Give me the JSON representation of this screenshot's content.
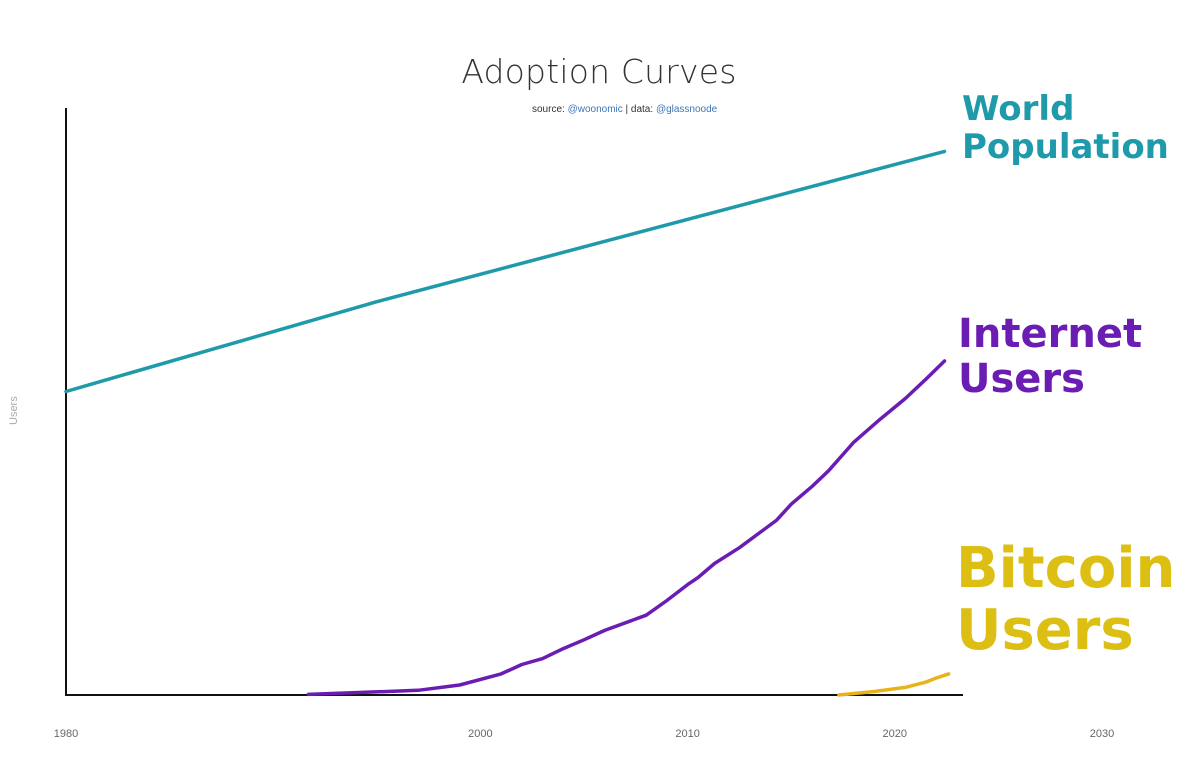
{
  "chart_data": {
    "type": "line",
    "title": "Adoption Curves",
    "subtitle": {
      "prefix": "source: ",
      "source_handle": "@woonomic",
      "separator": " | data: ",
      "data_handle": "@glassnoode"
    },
    "xlabel": "",
    "ylabel": "Users",
    "xlim": [
      1980,
      2030
    ],
    "x_ticks": [
      1980,
      2000,
      2010,
      2020,
      2030
    ],
    "ylim": [
      0,
      100
    ],
    "y_ticks_shown": false,
    "grid": false,
    "legend": "inline labels at line ends (right)",
    "series": [
      {
        "name": "World Population",
        "label_lines": [
          "World",
          "Population"
        ],
        "color": "#1e9aaa",
        "x": [
          1980,
          1995,
          2022.4
        ],
        "y": [
          51.7,
          67.0,
          92.6
        ]
      },
      {
        "name": "Internet Users",
        "label_lines": [
          "Internet",
          "Users"
        ],
        "color": "#6a1cb3",
        "x": [
          1991.7,
          1997,
          1999,
          2001,
          2002,
          2003,
          2004,
          2005,
          2006,
          2007,
          2008,
          2009,
          2010,
          2010.5,
          2011.3,
          2012.5,
          2013.5,
          2014.3,
          2015,
          2016,
          2016.8,
          2018,
          2019.3,
          2020.5,
          2021.5,
          2022.4
        ],
        "y": [
          0.1,
          0.8,
          1.7,
          3.6,
          5.2,
          6.2,
          7.9,
          9.4,
          11.0,
          12.3,
          13.6,
          16.1,
          18.8,
          20.0,
          22.4,
          25.1,
          27.7,
          29.8,
          32.5,
          35.5,
          38.2,
          43.0,
          47.0,
          50.5,
          53.8,
          56.9
        ]
      },
      {
        "name": "Bitcoin Users",
        "label_lines": [
          "Bitcoin",
          "Users"
        ],
        "color": "#e8b31a",
        "label_color": "#dcbf12",
        "x": [
          2017.3,
          2019,
          2020.5,
          2021.5,
          2022,
          2022.6
        ],
        "y": [
          0.0,
          0.6,
          1.3,
          2.2,
          2.9,
          3.6
        ]
      }
    ]
  }
}
